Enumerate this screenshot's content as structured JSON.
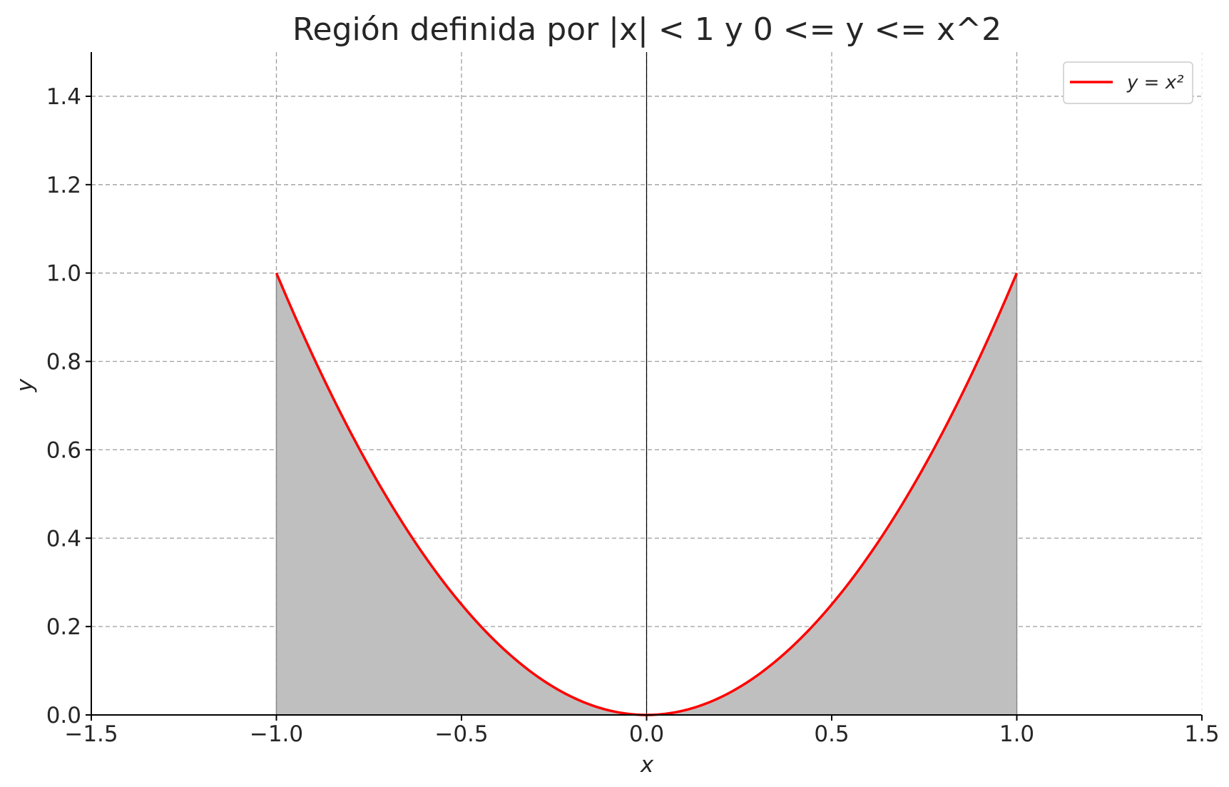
{
  "chart_data": {
    "type": "area",
    "title": "Región definida por |x| < 1 y 0 <= y <= x^2",
    "xlabel": "x",
    "ylabel": "y",
    "xlim": [
      -1.5,
      1.5
    ],
    "ylim": [
      0,
      1.5
    ],
    "x_ticks": [
      "−1.5",
      "−1.0",
      "−0.5",
      "0.0",
      "0.5",
      "1.0",
      "1.5"
    ],
    "y_ticks": [
      "0.0",
      "0.2",
      "0.4",
      "0.6",
      "0.8",
      "1.0",
      "1.2",
      "1.4"
    ],
    "grid": true,
    "legend_position": "top-right",
    "series": [
      {
        "name": "y = x²",
        "type": "line",
        "color": "#ff0000",
        "function": "x^2",
        "x": [
          -1.0,
          -0.9,
          -0.8,
          -0.7,
          -0.6,
          -0.5,
          -0.4,
          -0.3,
          -0.2,
          -0.1,
          0.0,
          0.1,
          0.2,
          0.3,
          0.4,
          0.5,
          0.6,
          0.7,
          0.8,
          0.9,
          1.0
        ],
        "y": [
          1.0,
          0.81,
          0.64,
          0.49,
          0.36,
          0.25,
          0.16,
          0.09,
          0.04,
          0.01,
          0.0,
          0.01,
          0.04,
          0.09,
          0.16,
          0.25,
          0.36,
          0.49,
          0.64,
          0.81,
          1.0
        ]
      }
    ],
    "shaded_region": {
      "x_range": [
        -1.0,
        1.0
      ],
      "y_lower": 0,
      "y_upper": "x^2",
      "color": "#bfbfbf"
    },
    "reference_lines": {
      "vertical_at_x": 0,
      "color": "#000000"
    }
  }
}
